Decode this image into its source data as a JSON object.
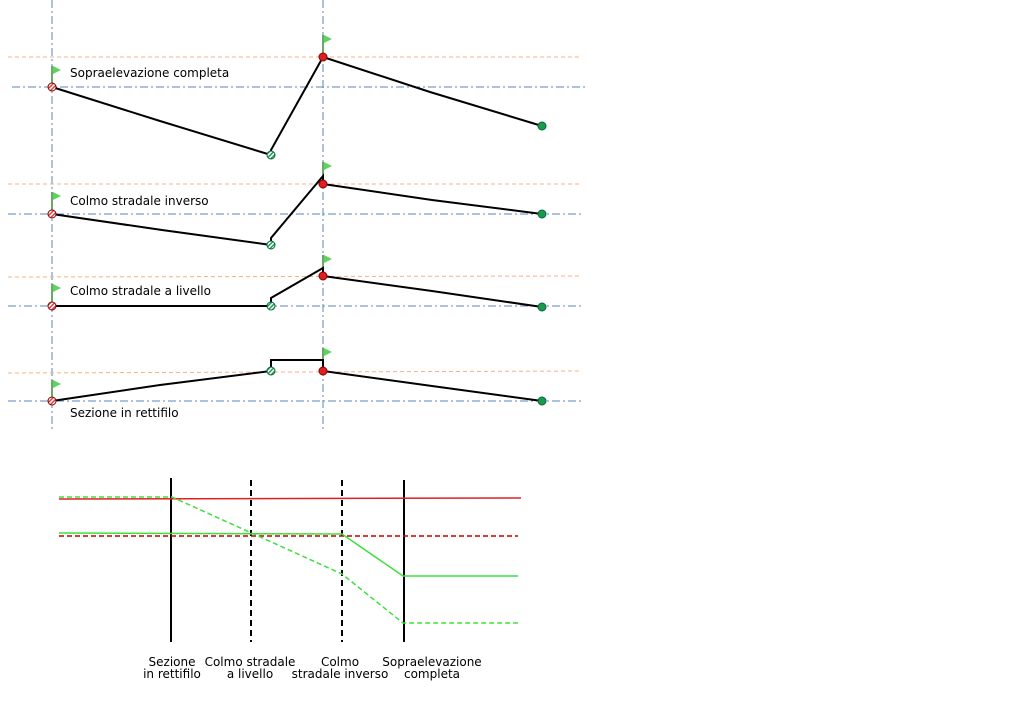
{
  "sections": [
    {
      "label": "Sopraelevazione completa"
    },
    {
      "label": "Colmo stradale inverso"
    },
    {
      "label": "Colmo stradale a livello"
    },
    {
      "label": "Sezione in rettifilo"
    }
  ],
  "legend": [
    {
      "lines": [
        "Sezione",
        "in rettifilo"
      ]
    },
    {
      "lines": [
        "Colmo stradale",
        "a livello"
      ]
    },
    {
      "lines": [
        "Colmo",
        "stradale inverso"
      ]
    },
    {
      "lines": [
        "Sopraelevazione",
        "completa"
      ]
    }
  ]
}
